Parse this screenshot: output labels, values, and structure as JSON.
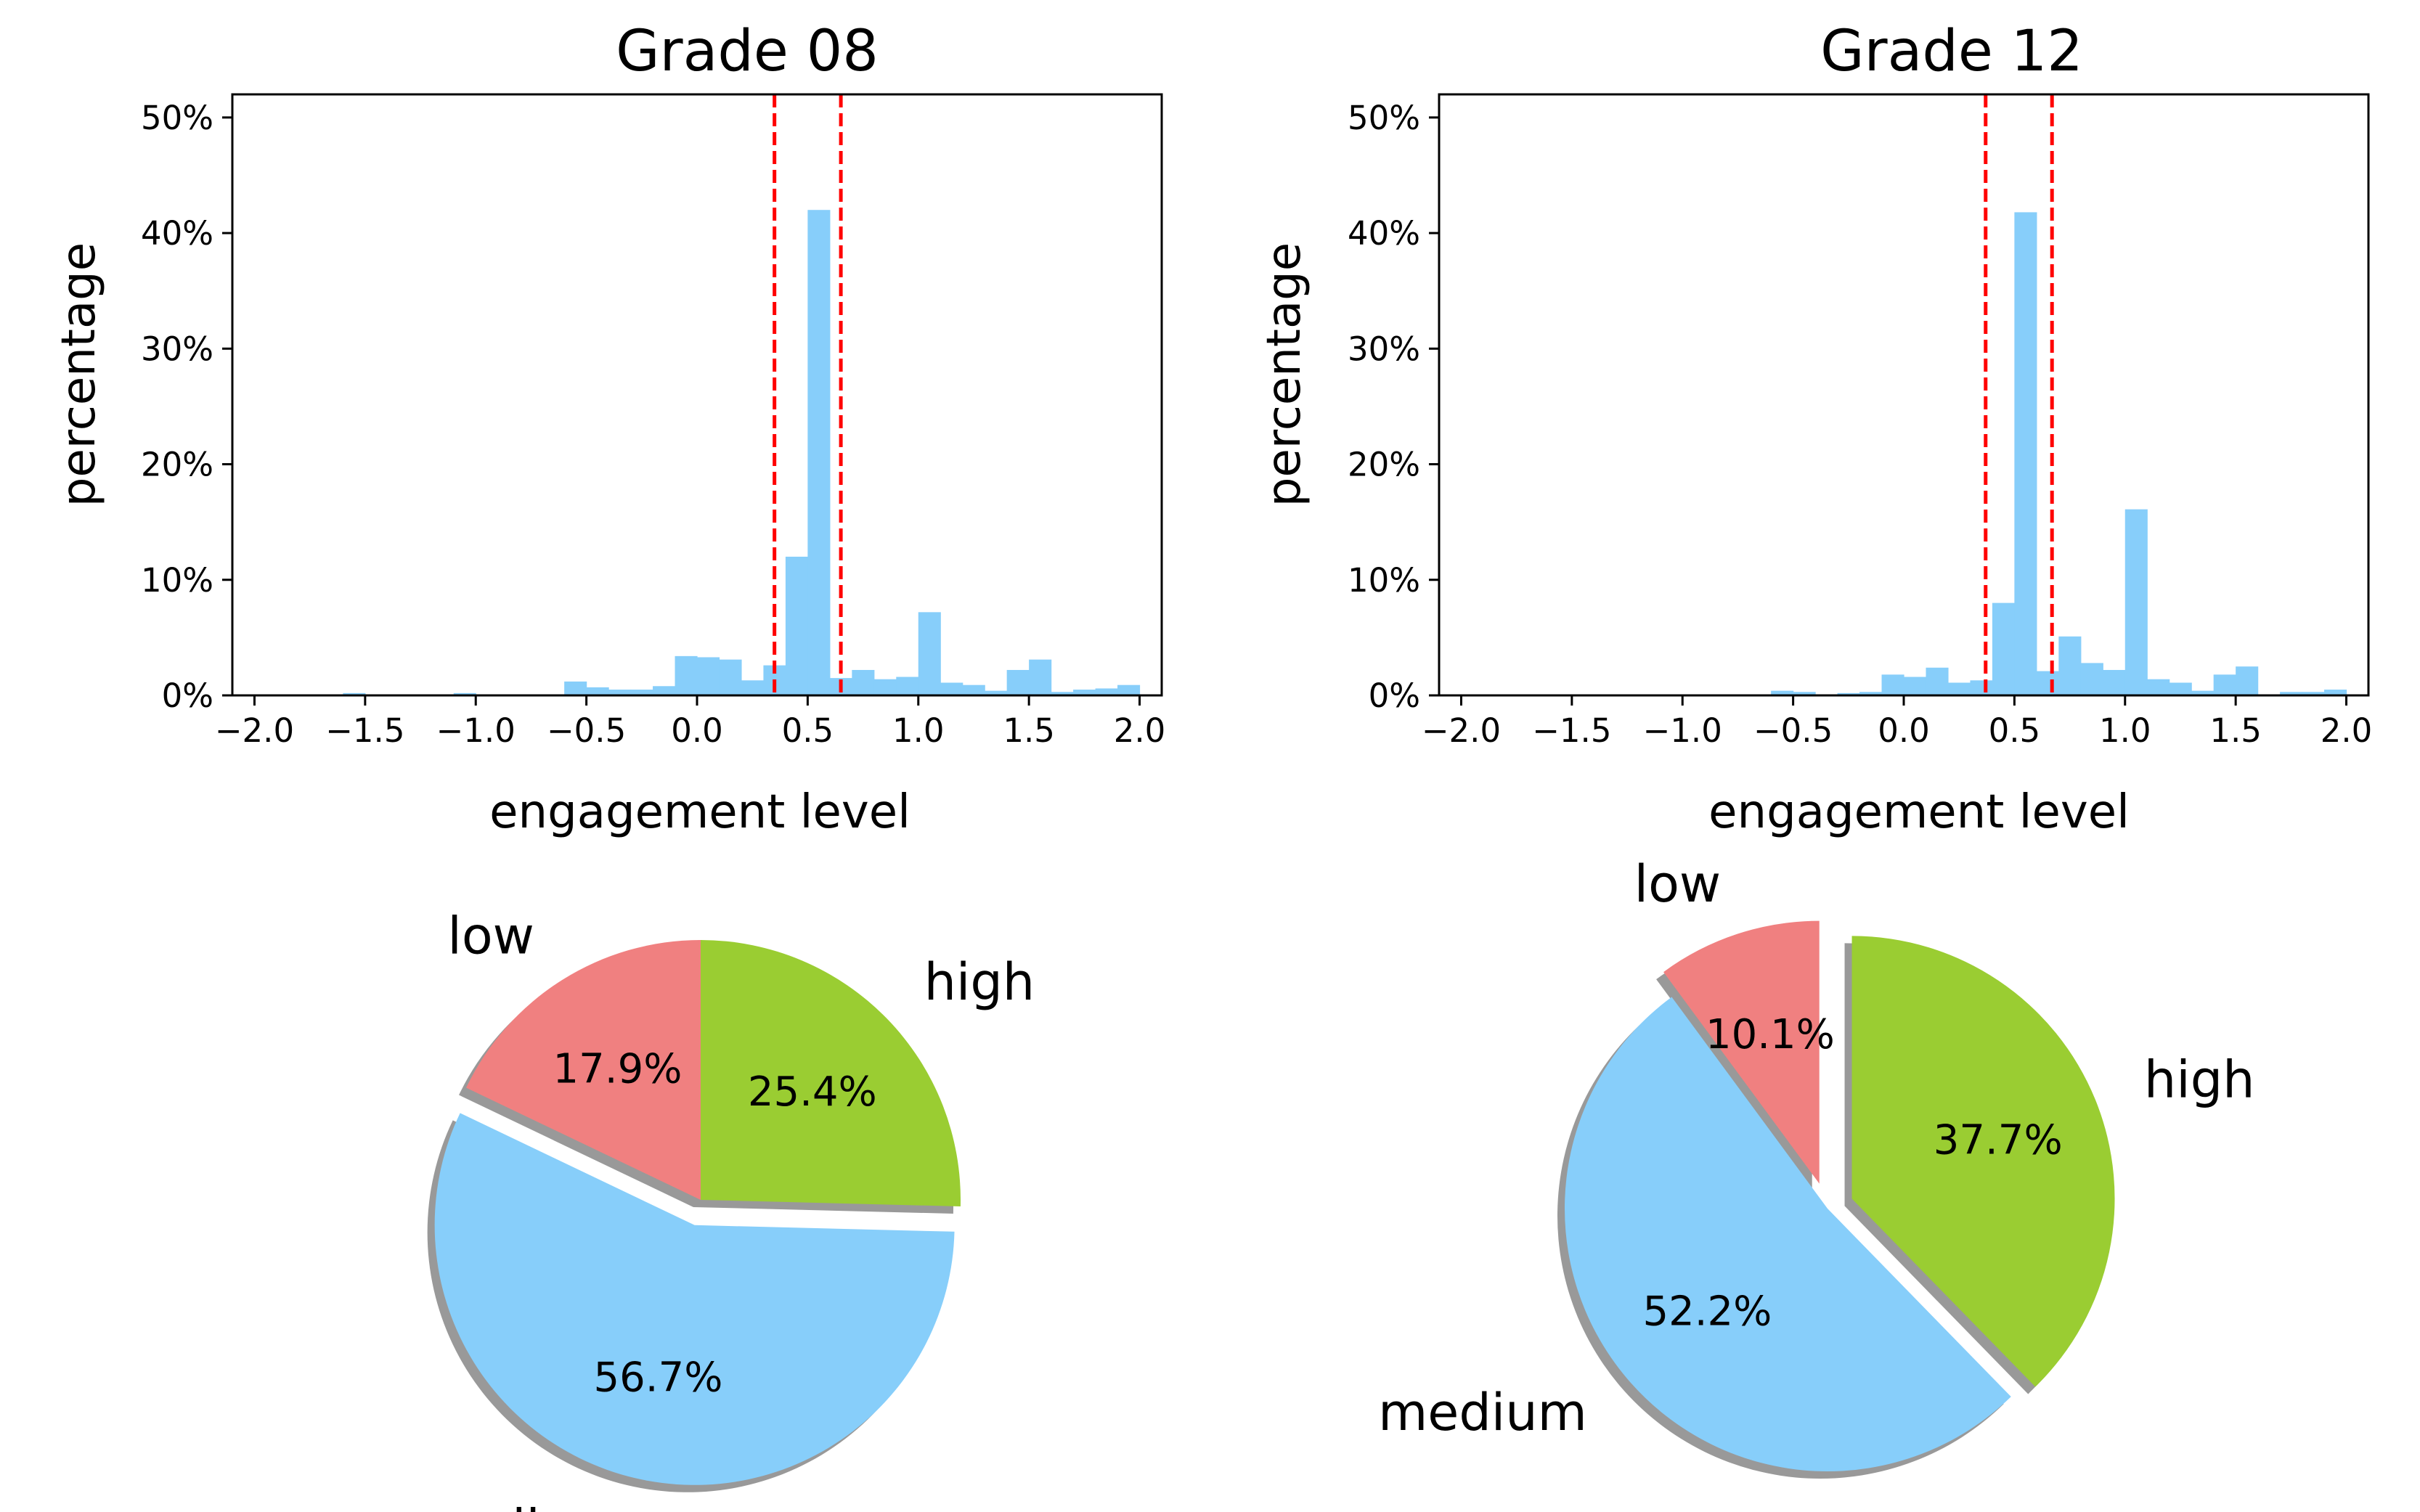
{
  "chart_data": [
    {
      "type": "histogram",
      "title": "Grade 08",
      "xlabel": "engagement level",
      "ylabel": "percentage",
      "xlim": [
        -2.1,
        2.1
      ],
      "ylim": [
        0,
        0.52
      ],
      "xticks": [
        -2.0,
        -1.5,
        -1.0,
        -0.5,
        0.0,
        0.5,
        1.0,
        1.5,
        2.0
      ],
      "xtick_labels": [
        "−2.0",
        "−1.5",
        "−1.0",
        "−0.5",
        "0.0",
        "0.5",
        "1.0",
        "1.5",
        "2.0"
      ],
      "yticks": [
        0,
        0.1,
        0.2,
        0.3,
        0.4,
        0.5
      ],
      "ytick_labels": [
        "0%",
        "10%",
        "20%",
        "30%",
        "40%",
        "50%"
      ],
      "threshold_lines": [
        0.35,
        0.65
      ],
      "bin_width": 0.1,
      "bins": [
        {
          "x0": -1.6,
          "value": 0.002
        },
        {
          "x0": -1.1,
          "value": 0.002
        },
        {
          "x0": -0.6,
          "value": 0.012
        },
        {
          "x0": -0.5,
          "value": 0.007
        },
        {
          "x0": -0.4,
          "value": 0.005
        },
        {
          "x0": -0.3,
          "value": 0.005
        },
        {
          "x0": -0.2,
          "value": 0.008
        },
        {
          "x0": -0.1,
          "value": 0.034
        },
        {
          "x0": 0.0,
          "value": 0.033
        },
        {
          "x0": 0.1,
          "value": 0.031
        },
        {
          "x0": 0.2,
          "value": 0.013
        },
        {
          "x0": 0.3,
          "value": 0.026
        },
        {
          "x0": 0.4,
          "value": 0.12
        },
        {
          "x0": 0.5,
          "value": 0.42
        },
        {
          "x0": 0.6,
          "value": 0.015
        },
        {
          "x0": 0.7,
          "value": 0.022
        },
        {
          "x0": 0.8,
          "value": 0.014
        },
        {
          "x0": 0.9,
          "value": 0.016
        },
        {
          "x0": 1.0,
          "value": 0.072
        },
        {
          "x0": 1.1,
          "value": 0.011
        },
        {
          "x0": 1.2,
          "value": 0.009
        },
        {
          "x0": 1.3,
          "value": 0.004
        },
        {
          "x0": 1.4,
          "value": 0.022
        },
        {
          "x0": 1.5,
          "value": 0.031
        },
        {
          "x0": 1.6,
          "value": 0.003
        },
        {
          "x0": 1.7,
          "value": 0.005
        },
        {
          "x0": 1.8,
          "value": 0.006
        },
        {
          "x0": 1.9,
          "value": 0.009
        }
      ]
    },
    {
      "type": "histogram",
      "title": "Grade 12",
      "xlabel": "engagement level",
      "ylabel": "percentage",
      "xlim": [
        -2.1,
        2.1
      ],
      "ylim": [
        0,
        0.52
      ],
      "xticks": [
        -2.0,
        -1.5,
        -1.0,
        -0.5,
        0.0,
        0.5,
        1.0,
        1.5,
        2.0
      ],
      "xtick_labels": [
        "−2.0",
        "−1.5",
        "−1.0",
        "−0.5",
        "0.0",
        "0.5",
        "1.0",
        "1.5",
        "2.0"
      ],
      "yticks": [
        0,
        0.1,
        0.2,
        0.3,
        0.4,
        0.5
      ],
      "ytick_labels": [
        "0%",
        "10%",
        "20%",
        "30%",
        "40%",
        "50%"
      ],
      "threshold_lines": [
        0.37,
        0.67
      ],
      "bin_width": 0.1,
      "bins": [
        {
          "x0": -0.6,
          "value": 0.004
        },
        {
          "x0": -0.5,
          "value": 0.003
        },
        {
          "x0": -0.3,
          "value": 0.002
        },
        {
          "x0": -0.2,
          "value": 0.003
        },
        {
          "x0": -0.1,
          "value": 0.018
        },
        {
          "x0": 0.0,
          "value": 0.016
        },
        {
          "x0": 0.1,
          "value": 0.024
        },
        {
          "x0": 0.2,
          "value": 0.011
        },
        {
          "x0": 0.3,
          "value": 0.013
        },
        {
          "x0": 0.4,
          "value": 0.08
        },
        {
          "x0": 0.5,
          "value": 0.418
        },
        {
          "x0": 0.6,
          "value": 0.021
        },
        {
          "x0": 0.7,
          "value": 0.051
        },
        {
          "x0": 0.8,
          "value": 0.028
        },
        {
          "x0": 0.9,
          "value": 0.022
        },
        {
          "x0": 1.0,
          "value": 0.161
        },
        {
          "x0": 1.1,
          "value": 0.014
        },
        {
          "x0": 1.2,
          "value": 0.011
        },
        {
          "x0": 1.3,
          "value": 0.004
        },
        {
          "x0": 1.4,
          "value": 0.018
        },
        {
          "x0": 1.5,
          "value": 0.025
        },
        {
          "x0": 1.7,
          "value": 0.003
        },
        {
          "x0": 1.8,
          "value": 0.003
        },
        {
          "x0": 1.9,
          "value": 0.005
        }
      ]
    },
    {
      "type": "pie",
      "title": "Grade 08",
      "start_angle_deg": 90,
      "direction": "clockwise",
      "shadow": true,
      "slices": [
        {
          "label": "high",
          "value": 25.4,
          "pct_label": "25.4%",
          "color": "#9acd32",
          "explode": 0
        },
        {
          "label": "medium",
          "value": 56.7,
          "pct_label": "56.7%",
          "color": "#87cefa",
          "explode": 0.1
        },
        {
          "label": "low",
          "value": 17.9,
          "pct_label": "17.9%",
          "color": "#f08080",
          "explode": 0
        }
      ]
    },
    {
      "type": "pie",
      "title": "Grade 12",
      "start_angle_deg": 90,
      "direction": "clockwise",
      "shadow": true,
      "slices": [
        {
          "label": "high",
          "value": 37.7,
          "pct_label": "37.7%",
          "color": "#9acd32",
          "explode": 0.1
        },
        {
          "label": "medium",
          "value": 52.2,
          "pct_label": "52.2%",
          "color": "#87cefa",
          "explode": 0
        },
        {
          "label": "low",
          "value": 10.1,
          "pct_label": "10.1%",
          "color": "#f08080",
          "explode": 0.1
        }
      ]
    }
  ],
  "colors": {
    "bar": "#87cefa",
    "threshold_line": "#ff0000",
    "axis": "#000000",
    "shadow": "#999999"
  }
}
